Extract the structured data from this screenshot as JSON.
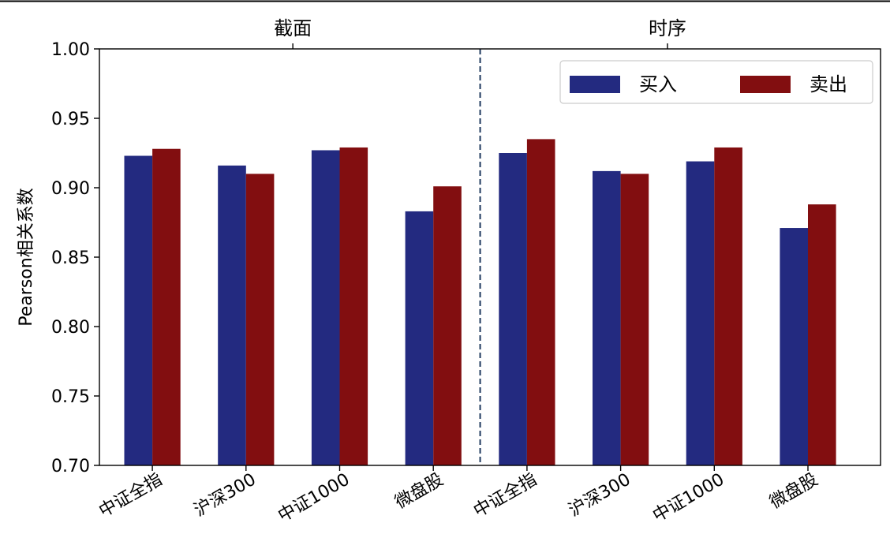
{
  "chart_data": {
    "type": "bar",
    "title": "",
    "xlabel": "",
    "ylabel": "Pearson相关系数",
    "ylim": [
      0.7,
      1.0
    ],
    "yticks": [
      "0.70",
      "0.75",
      "0.80",
      "0.85",
      "0.90",
      "0.95",
      "1.00"
    ],
    "ytick_values": [
      0.7,
      0.75,
      0.8,
      0.85,
      0.9,
      0.95,
      1.0
    ],
    "grid": false,
    "legend_position": "top-right",
    "panels": [
      {
        "title": "截面",
        "categories": [
          "中证全指",
          "沪深300",
          "中证1000",
          "微盘股"
        ],
        "series": [
          {
            "name": "买入",
            "color": "#232a80",
            "values": [
              0.923,
              0.916,
              0.927,
              0.883
            ]
          },
          {
            "name": "卖出",
            "color": "#820e10",
            "values": [
              0.928,
              0.91,
              0.929,
              0.901
            ]
          }
        ]
      },
      {
        "title": "时序",
        "categories": [
          "中证全指",
          "沪深300",
          "中证1000",
          "微盘股"
        ],
        "series": [
          {
            "name": "买入",
            "color": "#232a80",
            "values": [
              0.925,
              0.912,
              0.919,
              0.871
            ]
          },
          {
            "name": "卖出",
            "color": "#820e10",
            "values": [
              0.935,
              0.91,
              0.929,
              0.888
            ]
          }
        ]
      }
    ],
    "legend": [
      {
        "name": "买入",
        "color": "#232a80"
      },
      {
        "name": "卖出",
        "color": "#820e10"
      }
    ],
    "divider_color": "#1f3a5f"
  }
}
